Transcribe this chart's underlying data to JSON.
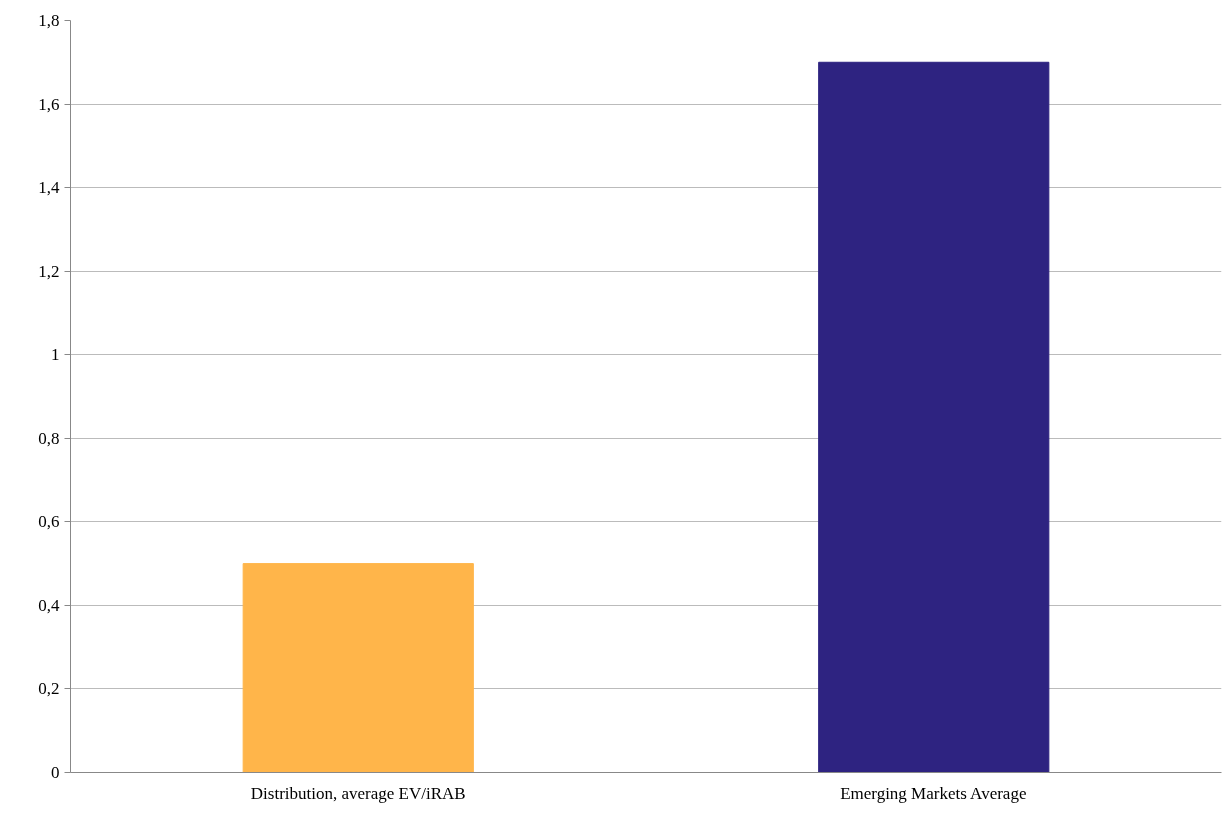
{
  "chart_data": {
    "type": "bar",
    "categories": [
      "Distribution, average EV/iRAB",
      "Emerging Markets Average"
    ],
    "values": [
      0.5,
      1.7
    ],
    "colors": [
      "#ffb54a",
      "#2e2381"
    ],
    "ylim": [
      0,
      1.8
    ],
    "yticks": [
      0,
      {
        "value": 0.2,
        "label": "0,2"
      },
      {
        "value": 0.4,
        "label": "0,4"
      },
      {
        "value": 0.6,
        "label": "0,6"
      },
      {
        "value": 0.8,
        "label": "0,8"
      },
      1,
      {
        "value": 1.2,
        "label": "1,2"
      },
      {
        "value": 1.4,
        "label": "1,4"
      },
      {
        "value": 1.6,
        "label": "1,6"
      },
      {
        "value": 1.8,
        "label": "1,8"
      }
    ],
    "grid": "y"
  }
}
